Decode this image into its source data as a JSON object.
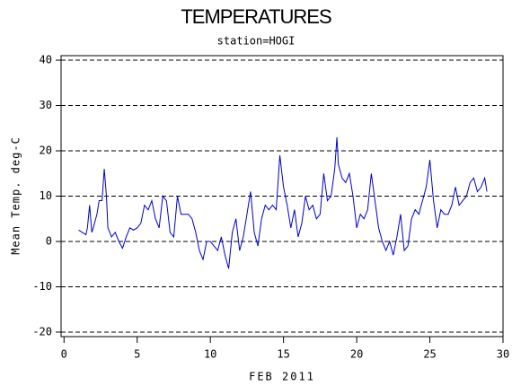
{
  "chart_data": {
    "type": "line",
    "title": "TEMPERATURES",
    "subtitle": "station=HOGI",
    "xlabel": "FEB 2011",
    "ylabel": "Mean Temp. deg-C",
    "x": [
      1.0,
      1.25,
      1.5,
      1.6,
      1.75,
      1.9,
      2.0,
      2.25,
      2.4,
      2.6,
      2.75,
      2.9,
      3.0,
      3.25,
      3.5,
      3.75,
      4.0,
      4.25,
      4.5,
      4.75,
      5.0,
      5.25,
      5.5,
      5.75,
      6.0,
      6.25,
      6.5,
      6.75,
      7.0,
      7.25,
      7.5,
      7.75,
      8.0,
      8.25,
      8.5,
      8.75,
      9.0,
      9.25,
      9.5,
      9.75,
      10.0,
      10.25,
      10.5,
      10.75,
      11.0,
      11.25,
      11.5,
      11.75,
      12.0,
      12.25,
      12.5,
      12.75,
      13.0,
      13.25,
      13.5,
      13.75,
      14.0,
      14.25,
      14.5,
      14.75,
      15.0,
      15.25,
      15.5,
      15.75,
      16.0,
      16.25,
      16.5,
      16.75,
      17.0,
      17.25,
      17.5,
      17.75,
      18.0,
      18.25,
      18.5,
      18.65,
      18.75,
      19.0,
      19.25,
      19.5,
      19.75,
      20.0,
      20.25,
      20.5,
      20.75,
      21.0,
      21.25,
      21.5,
      21.75,
      22.0,
      22.25,
      22.5,
      22.75,
      23.0,
      23.25,
      23.5,
      23.75,
      24.0,
      24.25,
      24.5,
      24.75,
      25.0,
      25.25,
      25.5,
      25.75,
      26.0,
      26.25,
      26.5,
      26.75,
      27.0,
      27.25,
      27.5,
      27.75,
      28.0,
      28.25,
      28.5,
      28.75,
      28.9
    ],
    "series": [
      {
        "name": "Mean Temp",
        "color": "#0000cc",
        "values": [
          2.5,
          2,
          1.5,
          3,
          8,
          2,
          3,
          6,
          9,
          9,
          16,
          10,
          3,
          1,
          2,
          0,
          -1.5,
          1,
          3,
          2.5,
          3,
          4,
          8,
          7,
          9,
          5,
          3,
          10,
          9,
          2,
          1,
          10,
          6,
          6,
          6,
          5,
          2,
          -2,
          -4,
          0,
          0,
          -1,
          -2,
          1,
          -3,
          -6,
          2,
          5,
          -2,
          1,
          6,
          11,
          2,
          -1,
          5,
          8,
          7,
          8,
          7,
          19,
          12,
          8,
          3,
          7,
          1,
          4,
          10,
          7,
          8,
          5,
          6,
          15,
          9,
          10,
          16,
          23,
          17,
          14,
          13,
          15,
          10,
          3,
          6,
          5,
          7,
          15,
          9,
          3,
          0,
          -2,
          0,
          -3,
          1,
          6,
          -2,
          -1,
          5,
          7,
          6,
          9,
          12,
          18,
          9,
          3,
          7,
          6,
          6,
          8,
          12,
          8,
          9,
          10,
          13,
          14,
          11,
          12,
          14,
          11
        ]
      }
    ],
    "xlim": [
      -0.2,
      30
    ],
    "xticks": [
      0,
      5,
      10,
      15,
      20,
      25,
      30
    ],
    "ylim": [
      -21,
      41
    ],
    "yticks": [
      -20,
      -10,
      0,
      10,
      20,
      30,
      40
    ],
    "grid": true
  }
}
